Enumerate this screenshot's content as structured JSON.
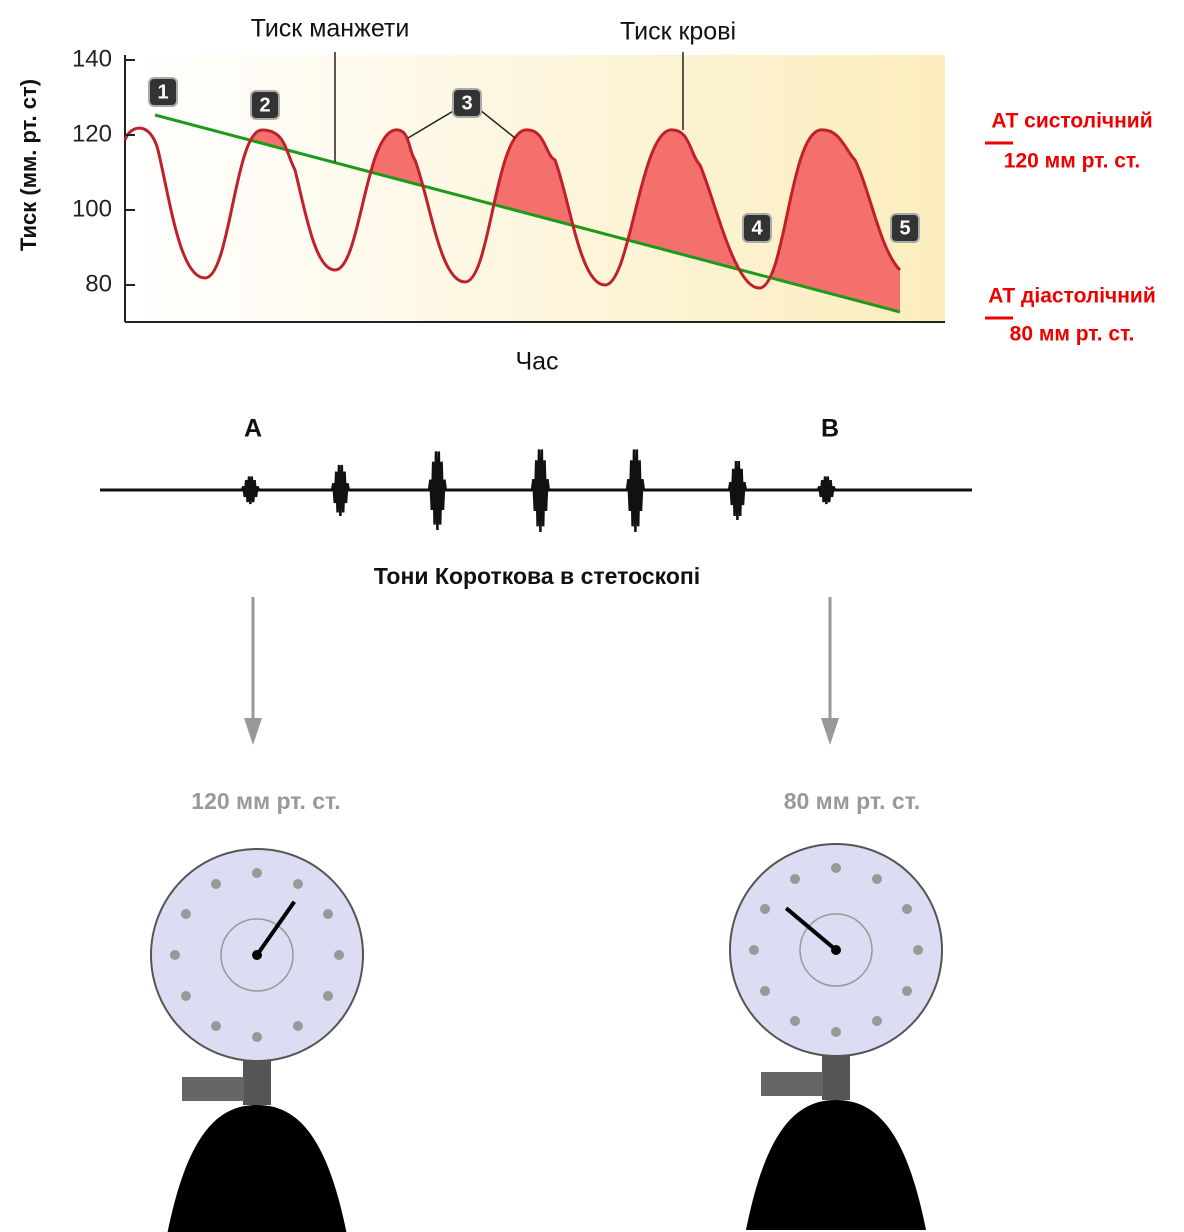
{
  "chart": {
    "y_label": "Тиск (мм. рт. ст)",
    "x_label": "Час",
    "yticks": [
      80,
      100,
      120,
      140
    ],
    "cuff_label": "Тиск манжети",
    "blood_label": "Тиск крові",
    "markers": [
      "1",
      "2",
      "3",
      "4",
      "5"
    ]
  },
  "right_labels": {
    "systolic_title": "АТ систолічний",
    "systolic_value": "120 мм рт. ст.",
    "diastolic_title": "АТ діастолічний",
    "diastolic_value": "80 мм рт. ст."
  },
  "sounds": {
    "a": "A",
    "b": "B",
    "caption": "Тони Короткова в стетоскопі"
  },
  "gauges": [
    {
      "reading": "120 мм рт. ст."
    },
    {
      "reading": "80 мм рт. ст."
    }
  ]
}
